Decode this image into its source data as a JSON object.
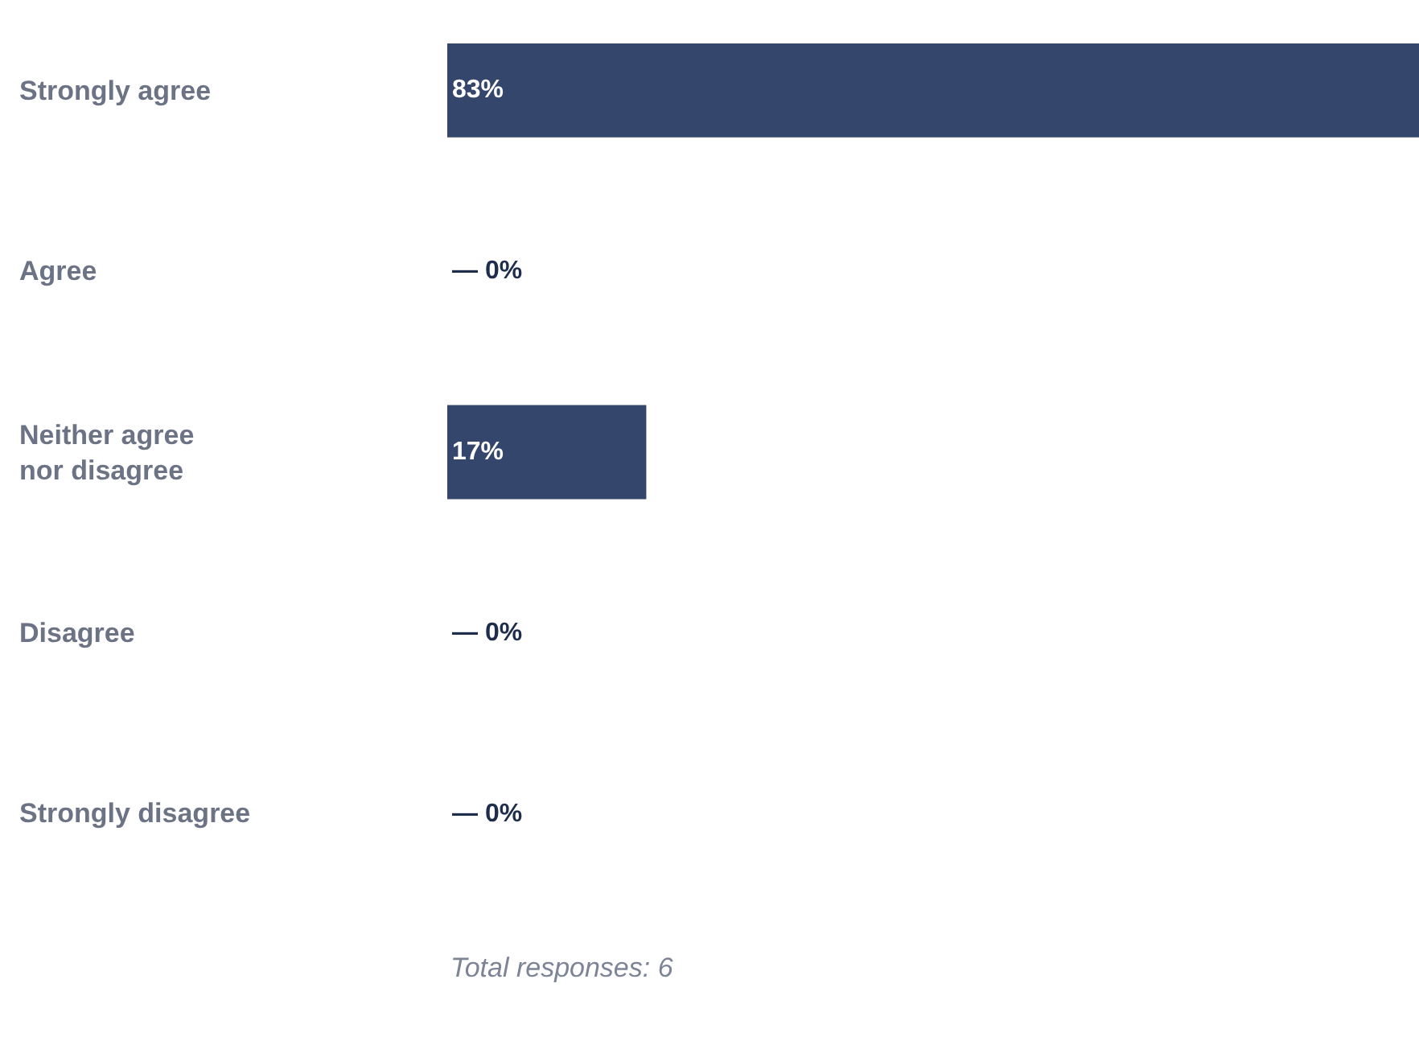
{
  "chart_data": {
    "type": "bar",
    "orientation": "horizontal",
    "categories": [
      "Strongly agree",
      "Agree",
      "Neither agree nor disagree",
      "Disagree",
      "Strongly disagree"
    ],
    "values": [
      83,
      0,
      17,
      0,
      0
    ],
    "value_labels": [
      "83%",
      "— 0%",
      "17%",
      "— 0%",
      "— 0%"
    ],
    "color": "#34466b",
    "xlim": [
      0,
      83
    ],
    "tick_labels": "y",
    "legend": false,
    "annotations": [
      "Total responses: 6"
    ]
  }
}
